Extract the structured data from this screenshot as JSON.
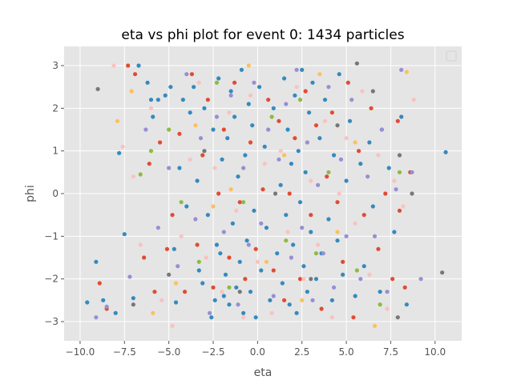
{
  "chart_data": {
    "type": "scatter",
    "title": "eta vs phi plot for event 0: 1434 particles",
    "xlabel": "eta",
    "ylabel": "phi",
    "xlim": [
      -10.9,
      11.5
    ],
    "ylim": [
      -3.45,
      3.45
    ],
    "xticks": [
      -10,
      -7.5,
      -5,
      -2.5,
      0,
      2.5,
      5,
      7.5,
      10
    ],
    "xtick_labels": [
      "−10.0",
      "−7.5",
      "−5.0",
      "−2.5",
      "0.0",
      "2.5",
      "5.0",
      "7.5",
      "10.0"
    ],
    "yticks": [
      -3,
      -2,
      -1,
      0,
      1,
      2,
      3
    ],
    "ytick_labels": [
      "−3",
      "−2",
      "−1",
      "0",
      "1",
      "2",
      "3"
    ],
    "grid": true,
    "legend": "upper-right (empty)",
    "background": "#e5e5e5",
    "colors": [
      "#348abd",
      "#e24a33",
      "#988ed5",
      "#fbc1c1",
      "#8eba42",
      "#777777",
      "#fbc15e"
    ],
    "series": [
      {
        "color": "#348abd",
        "points": [
          [
            -9.6,
            -2.55
          ],
          [
            -9.1,
            -1.6
          ],
          [
            -8.7,
            -2.5
          ],
          [
            -8.0,
            -2.8
          ],
          [
            -7.8,
            0.95
          ],
          [
            -7.5,
            -0.95
          ],
          [
            -7.0,
            -2.45
          ],
          [
            -6.7,
            3.0
          ],
          [
            -6.2,
            2.6
          ],
          [
            -6.0,
            2.2
          ],
          [
            -5.9,
            1.8
          ],
          [
            -5.6,
            2.2
          ],
          [
            -5.2,
            2.3
          ],
          [
            -4.9,
            2.5
          ],
          [
            -4.7,
            -1.3
          ],
          [
            -4.6,
            -2.55
          ],
          [
            -4.4,
            0.6
          ],
          [
            -4.2,
            2.2
          ],
          [
            -4.0,
            -0.3
          ],
          [
            -3.8,
            1.9
          ],
          [
            -3.6,
            2.5
          ],
          [
            -3.4,
            0.3
          ],
          [
            -3.3,
            -1.8
          ],
          [
            -3.1,
            -2.1
          ],
          [
            -3.0,
            2.0
          ],
          [
            -2.8,
            -0.5
          ],
          [
            -2.6,
            -2.9
          ],
          [
            -2.5,
            1.5
          ],
          [
            -2.4,
            -2.5
          ],
          [
            -2.3,
            -1.2
          ],
          [
            -2.2,
            2.7
          ],
          [
            -2.1,
            -1.4
          ],
          [
            -2.0,
            0.8
          ],
          [
            -1.9,
            -2.4
          ],
          [
            -1.8,
            -1.9
          ],
          [
            -1.7,
            1.3
          ],
          [
            -1.6,
            -2.6
          ],
          [
            -1.5,
            2.4
          ],
          [
            -1.4,
            -0.7
          ],
          [
            -1.3,
            1.8
          ],
          [
            -1.2,
            -2.2
          ],
          [
            -1.1,
            0.4
          ],
          [
            -1.0,
            -1.6
          ],
          [
            -0.9,
            2.9
          ],
          [
            -0.8,
            -2.8
          ],
          [
            -0.7,
            0.9
          ],
          [
            -0.6,
            -1.1
          ],
          [
            -0.5,
            2.1
          ],
          [
            -0.4,
            -2.3
          ],
          [
            -0.3,
            1.6
          ],
          [
            -0.2,
            -0.4
          ],
          [
            -0.1,
            -2.9
          ],
          [
            0.1,
            2.5
          ],
          [
            0.2,
            -1.8
          ],
          [
            0.4,
            1.1
          ],
          [
            0.5,
            -0.8
          ],
          [
            0.7,
            -2.5
          ],
          [
            0.9,
            2.0
          ],
          [
            1.1,
            -1.4
          ],
          [
            1.3,
            0.2
          ],
          [
            1.4,
            -2.1
          ],
          [
            1.5,
            2.7
          ],
          [
            1.6,
            -0.5
          ],
          [
            1.7,
            1.5
          ],
          [
            1.8,
            -2.6
          ],
          [
            1.9,
            0.7
          ],
          [
            2.0,
            -1.2
          ],
          [
            2.1,
            2.3
          ],
          [
            2.2,
            -2.8
          ],
          [
            2.3,
            1.0
          ],
          [
            2.4,
            -0.2
          ],
          [
            2.5,
            2.9
          ],
          [
            2.6,
            -1.7
          ],
          [
            2.7,
            0.5
          ],
          [
            2.8,
            -2.3
          ],
          [
            2.9,
            1.9
          ],
          [
            3.0,
            -0.9
          ],
          [
            3.1,
            2.6
          ],
          [
            3.3,
            -2.0
          ],
          [
            3.5,
            1.3
          ],
          [
            3.6,
            -1.4
          ],
          [
            3.8,
            2.2
          ],
          [
            4.0,
            -0.6
          ],
          [
            4.2,
            -2.5
          ],
          [
            4.3,
            0.9
          ],
          [
            4.5,
            -1.1
          ],
          [
            4.6,
            2.8
          ],
          [
            4.8,
            -1.9
          ],
          [
            5.0,
            0.3
          ],
          [
            5.2,
            1.7
          ],
          [
            5.5,
            -2.4
          ],
          [
            5.8,
            0.7
          ],
          [
            6.0,
            -1.7
          ],
          [
            6.3,
            1.2
          ],
          [
            6.5,
            -0.3
          ],
          [
            6.9,
            -2.3
          ],
          [
            7.0,
            1.5
          ],
          [
            7.4,
            0.6
          ],
          [
            7.7,
            -0.9
          ],
          [
            8.1,
            1.8
          ],
          [
            8.4,
            -2.6
          ],
          [
            10.6,
            0.97
          ]
        ]
      },
      {
        "color": "#e24a33",
        "points": [
          [
            -8.9,
            -2.1
          ],
          [
            -8.5,
            -2.7
          ],
          [
            -7.3,
            3.0
          ],
          [
            -6.9,
            2.8
          ],
          [
            -6.4,
            -1.5
          ],
          [
            -6.1,
            0.7
          ],
          [
            -5.8,
            -2.3
          ],
          [
            -5.5,
            1.2
          ],
          [
            -5.1,
            -1.3
          ],
          [
            -4.8,
            -0.5
          ],
          [
            -4.4,
            1.4
          ],
          [
            -4.1,
            -2.3
          ],
          [
            -3.7,
            2.8
          ],
          [
            -3.4,
            -1.2
          ],
          [
            -3.1,
            0.9
          ],
          [
            -2.8,
            2.2
          ],
          [
            -2.5,
            -2.2
          ],
          [
            -2.2,
            0.0
          ],
          [
            -1.9,
            1.5
          ],
          [
            -1.6,
            -1.5
          ],
          [
            -1.3,
            2.6
          ],
          [
            -1.0,
            -0.2
          ],
          [
            -0.7,
            -2.0
          ],
          [
            -0.4,
            1.2
          ],
          [
            -0.1,
            -1.3
          ],
          [
            0.3,
            0.1
          ],
          [
            0.6,
            2.2
          ],
          [
            0.9,
            -1.8
          ],
          [
            1.2,
            1.7
          ],
          [
            1.5,
            -2.5
          ],
          [
            1.8,
            0.0
          ],
          [
            2.1,
            1.3
          ],
          [
            2.4,
            -2.0
          ],
          [
            2.7,
            2.4
          ],
          [
            3.0,
            -0.5
          ],
          [
            3.3,
            1.6
          ],
          [
            3.6,
            -2.7
          ],
          [
            3.9,
            0.4
          ],
          [
            4.2,
            1.9
          ],
          [
            4.5,
            -0.2
          ],
          [
            4.8,
            -1.6
          ],
          [
            5.1,
            2.6
          ],
          [
            5.4,
            -2.9
          ],
          [
            5.7,
            1.0
          ],
          [
            6.0,
            -0.5
          ],
          [
            6.4,
            2.0
          ],
          [
            6.8,
            -1.3
          ],
          [
            7.2,
            0.0
          ],
          [
            7.6,
            -2.0
          ],
          [
            7.9,
            1.7
          ],
          [
            8.0,
            -0.4
          ],
          [
            8.3,
            -2.2
          ],
          [
            8.6,
            0.5
          ]
        ]
      },
      {
        "color": "#988ed5",
        "points": [
          [
            -9.1,
            -2.9
          ],
          [
            -8.5,
            -2.65
          ],
          [
            -7.2,
            -1.95
          ],
          [
            -6.3,
            1.5
          ],
          [
            -5.6,
            -0.8
          ],
          [
            -5.0,
            0.6
          ],
          [
            -4.5,
            -1.7
          ],
          [
            -4.0,
            2.8
          ],
          [
            -3.5,
            -0.6
          ],
          [
            -3.2,
            1.3
          ],
          [
            -2.7,
            -2.8
          ],
          [
            -2.3,
            1.8
          ],
          [
            -1.9,
            -0.9
          ],
          [
            -1.5,
            2.3
          ],
          [
            -1.1,
            -2.6
          ],
          [
            -0.8,
            0.6
          ],
          [
            -0.5,
            -1.2
          ],
          [
            -0.2,
            2.6
          ],
          [
            0.2,
            -0.7
          ],
          [
            0.6,
            1.5
          ],
          [
            0.9,
            -2.4
          ],
          [
            1.2,
            0.8
          ],
          [
            1.6,
            2.1
          ],
          [
            1.9,
            -1.5
          ],
          [
            2.2,
            2.9
          ],
          [
            2.5,
            -0.8
          ],
          [
            2.8,
            1.2
          ],
          [
            3.1,
            -2.5
          ],
          [
            3.4,
            0.2
          ],
          [
            3.7,
            -1.4
          ],
          [
            4.0,
            2.5
          ],
          [
            4.3,
            -2.2
          ],
          [
            4.7,
            0.8
          ],
          [
            5.0,
            -1.0
          ],
          [
            5.3,
            2.2
          ],
          [
            5.8,
            -2.0
          ],
          [
            6.2,
            0.4
          ],
          [
            6.6,
            -1.0
          ],
          [
            7.0,
            1.5
          ],
          [
            7.3,
            -2.3
          ],
          [
            7.8,
            0.1
          ],
          [
            8.1,
            2.9
          ],
          [
            8.7,
            0.5
          ],
          [
            9.2,
            -2.0
          ]
        ]
      },
      {
        "color": "#fbc1c1",
        "points": [
          [
            -8.1,
            3.0
          ],
          [
            -7.6,
            1.1
          ],
          [
            -7.0,
            0.4
          ],
          [
            -6.6,
            -1.2
          ],
          [
            -6.0,
            2.0
          ],
          [
            -5.4,
            -2.5
          ],
          [
            -4.8,
            -3.1
          ],
          [
            -4.3,
            -1.0
          ],
          [
            -3.8,
            0.8
          ],
          [
            -3.3,
            2.6
          ],
          [
            -2.9,
            -1.5
          ],
          [
            -2.4,
            0.6
          ],
          [
            -2.0,
            -2.3
          ],
          [
            -1.6,
            1.9
          ],
          [
            -1.2,
            -0.4
          ],
          [
            -0.8,
            -2.9
          ],
          [
            -0.4,
            2.3
          ],
          [
            0.0,
            -1.6
          ],
          [
            0.4,
            0.7
          ],
          [
            0.8,
            -2.8
          ],
          [
            1.3,
            1.0
          ],
          [
            1.7,
            -0.9
          ],
          [
            2.2,
            2.5
          ],
          [
            2.6,
            -2.0
          ],
          [
            3.0,
            0.3
          ],
          [
            3.4,
            -1.2
          ],
          [
            3.8,
            1.7
          ],
          [
            4.2,
            -2.9
          ],
          [
            4.6,
            0.0
          ],
          [
            5.0,
            1.3
          ],
          [
            5.5,
            -0.7
          ],
          [
            5.9,
            2.4
          ],
          [
            6.3,
            -1.9
          ],
          [
            6.8,
            0.9
          ],
          [
            7.3,
            -2.7
          ],
          [
            7.7,
            0.3
          ],
          [
            8.2,
            -0.3
          ],
          [
            8.8,
            2.2
          ]
        ]
      },
      {
        "color": "#8eba42",
        "points": [
          [
            -6.6,
            0.45
          ],
          [
            -6.0,
            1.0
          ],
          [
            -5.0,
            1.5
          ],
          [
            -4.3,
            -0.2
          ],
          [
            -3.3,
            -1.6
          ],
          [
            -2.3,
            2.6
          ],
          [
            -1.6,
            -2.2
          ],
          [
            -0.8,
            -0.2
          ],
          [
            0.8,
            1.8
          ],
          [
            1.6,
            -1.1
          ],
          [
            2.4,
            2.2
          ],
          [
            3.3,
            -1.4
          ],
          [
            4.0,
            0.5
          ],
          [
            5.6,
            -1.8
          ],
          [
            6.9,
            -2.6
          ],
          [
            8.0,
            0.5
          ]
        ]
      },
      {
        "color": "#777777",
        "points": [
          [
            -9.0,
            2.45
          ],
          [
            -7.0,
            -2.6
          ],
          [
            -5.0,
            -1.9
          ],
          [
            -3.0,
            1.0
          ],
          [
            -1.0,
            -2.3
          ],
          [
            1.0,
            0.0
          ],
          [
            3.0,
            -2.0
          ],
          [
            4.5,
            1.6
          ],
          [
            5.6,
            3.05
          ],
          [
            6.5,
            2.4
          ],
          [
            7.9,
            -2.9
          ],
          [
            8.0,
            0.9
          ],
          [
            8.7,
            0.0
          ],
          [
            10.4,
            -1.85
          ]
        ]
      },
      {
        "color": "#fbc15e",
        "points": [
          [
            -7.9,
            1.7
          ],
          [
            -7.1,
            2.4
          ],
          [
            -5.9,
            -2.8
          ],
          [
            -4.6,
            -2.1
          ],
          [
            -3.5,
            1.6
          ],
          [
            -2.5,
            -0.3
          ],
          [
            -1.5,
            0.1
          ],
          [
            -0.5,
            3.0
          ],
          [
            0.5,
            -1.6
          ],
          [
            1.5,
            0.9
          ],
          [
            2.5,
            -2.5
          ],
          [
            3.5,
            2.8
          ],
          [
            4.5,
            -0.9
          ],
          [
            5.5,
            1.2
          ],
          [
            6.6,
            -3.1
          ],
          [
            8.4,
            2.85
          ]
        ]
      }
    ]
  }
}
